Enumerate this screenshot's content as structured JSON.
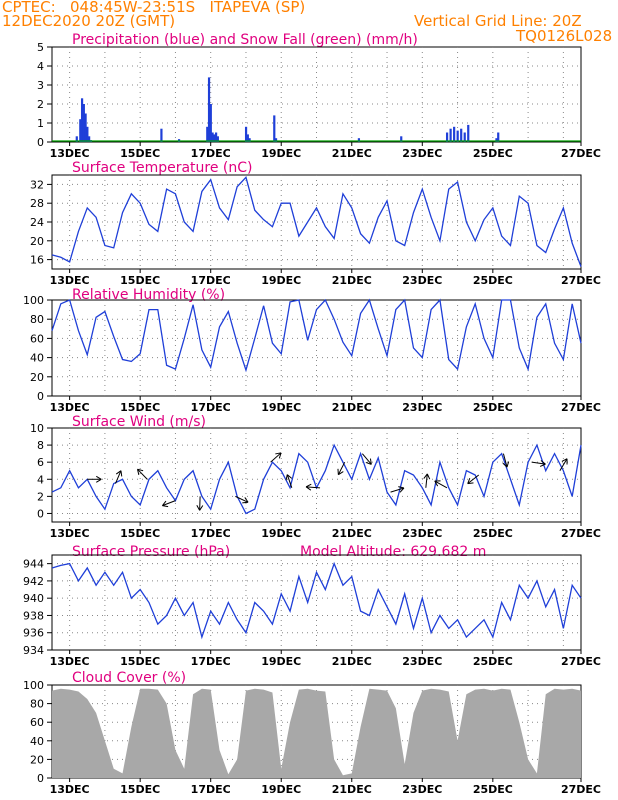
{
  "header": {
    "line1": "CPTEC:   048:45W-23:51S   ITAPEVA (SP)",
    "line2": "12DEC2020 20Z (GMT)",
    "right1": "Vertical Grid Line: 20Z",
    "right2": "TQ0126L028",
    "color": "#ff8000"
  },
  "colors": {
    "title": "#e0007f",
    "line": "#1f3fd8",
    "snow": "#00a000",
    "cloud": "#a8a8a8",
    "grid": "#888888"
  },
  "x_ticks": [
    "13DEC",
    "15DEC",
    "17DEC",
    "19DEC",
    "21DEC",
    "23DEC",
    "25DEC",
    "27DEC"
  ],
  "chart_data": [
    {
      "type": "bar",
      "title": "Precipitation (blue) and Snow Fall (green) (mm/h)",
      "ylim": [
        0,
        5
      ],
      "yticks": [
        "0",
        "1",
        "2",
        "3",
        "4",
        "5"
      ],
      "series": [
        {
          "name": "Precipitation",
          "points": [
            [
              0.7,
              0.3
            ],
            [
              0.8,
              1.2
            ],
            [
              0.85,
              2.3
            ],
            [
              0.9,
              2.0
            ],
            [
              0.95,
              1.5
            ],
            [
              1.0,
              0.8
            ],
            [
              1.05,
              0.3
            ],
            [
              1.1,
              0.1
            ],
            [
              3.1,
              0.7
            ],
            [
              3.6,
              0.15
            ],
            [
              4.4,
              0.8
            ],
            [
              4.45,
              3.4
            ],
            [
              4.5,
              2.0
            ],
            [
              4.55,
              0.5
            ],
            [
              4.6,
              0.4
            ],
            [
              4.65,
              0.5
            ],
            [
              4.7,
              0.3
            ],
            [
              5.5,
              0.8
            ],
            [
              5.55,
              0.4
            ],
            [
              5.6,
              0.2
            ],
            [
              6.3,
              1.4
            ],
            [
              6.35,
              0.2
            ],
            [
              8.7,
              0.2
            ],
            [
              9.9,
              0.3
            ],
            [
              11.2,
              0.5
            ],
            [
              11.3,
              0.7
            ],
            [
              11.4,
              0.8
            ],
            [
              11.5,
              0.6
            ],
            [
              11.6,
              0.7
            ],
            [
              11.7,
              0.5
            ],
            [
              11.8,
              0.9
            ],
            [
              12.6,
              0.2
            ],
            [
              12.65,
              0.5
            ]
          ]
        },
        {
          "name": "Snow Fall",
          "points": []
        }
      ]
    },
    {
      "type": "line",
      "title": "Surface Temperature (nC)",
      "ylim": [
        14,
        34
      ],
      "yticks": [
        "16",
        "20",
        "24",
        "28",
        "32"
      ],
      "x": [
        0,
        0.25,
        0.5,
        0.75,
        1,
        1.25,
        1.5,
        1.75,
        2,
        2.25,
        2.5,
        2.75,
        3,
        3.25,
        3.5,
        3.75,
        4,
        4.25,
        4.5,
        4.75,
        5,
        5.25,
        5.5,
        5.75,
        6,
        6.25,
        6.5,
        6.75,
        7,
        7.25,
        7.5,
        7.75,
        8,
        8.25,
        8.5,
        8.75,
        9,
        9.25,
        9.5,
        9.75,
        10,
        10.25,
        10.5,
        10.75,
        11,
        11.25,
        11.5,
        11.75,
        12,
        12.25,
        12.5,
        12.75,
        13,
        13.25,
        13.5,
        13.75,
        14,
        14.25,
        14.5,
        14.75,
        15
      ],
      "values": [
        17,
        16.5,
        15.5,
        22,
        27,
        25,
        19,
        18.5,
        26,
        30,
        28,
        23.5,
        22,
        31,
        30,
        24,
        22,
        30.5,
        33,
        27,
        24.5,
        31.5,
        33.5,
        26.5,
        24.5,
        23,
        28,
        28,
        21,
        24,
        27,
        23,
        20.5,
        30,
        27,
        21.5,
        19.5,
        25,
        28.5,
        20,
        19,
        26,
        31,
        25,
        20,
        31,
        32.5,
        24,
        20,
        24.5,
        27,
        21,
        19,
        29.5,
        28,
        19,
        17.5,
        22.5,
        27,
        19.5,
        14.5
      ]
    },
    {
      "type": "line",
      "title": "Relative Humidity (%)",
      "ylim": [
        0,
        100
      ],
      "yticks": [
        "0",
        "20",
        "40",
        "60",
        "80",
        "100"
      ],
      "x": [
        0,
        0.25,
        0.5,
        0.75,
        1,
        1.25,
        1.5,
        1.75,
        2,
        2.25,
        2.5,
        2.75,
        3,
        3.25,
        3.5,
        3.75,
        4,
        4.25,
        4.5,
        4.75,
        5,
        5.25,
        5.5,
        5.75,
        6,
        6.25,
        6.5,
        6.75,
        7,
        7.25,
        7.5,
        7.75,
        8,
        8.25,
        8.5,
        8.75,
        9,
        9.25,
        9.5,
        9.75,
        10,
        10.25,
        10.5,
        10.75,
        11,
        11.25,
        11.5,
        11.75,
        12,
        12.25,
        12.5,
        12.75,
        13,
        13.25,
        13.5,
        13.75,
        14,
        14.25,
        14.5,
        14.75,
        15
      ],
      "values": [
        68,
        96,
        100,
        68,
        43,
        82,
        88,
        62,
        38,
        36,
        44,
        90,
        90,
        32,
        28,
        60,
        95,
        48,
        30,
        72,
        88,
        55,
        27,
        60,
        94,
        55,
        44,
        98,
        100,
        58,
        90,
        100,
        80,
        56,
        42,
        86,
        100,
        70,
        42,
        90,
        100,
        50,
        40,
        90,
        100,
        38,
        28,
        72,
        96,
        60,
        40,
        100,
        100,
        50,
        28,
        82,
        96,
        55,
        38,
        96,
        55
      ]
    },
    {
      "type": "line",
      "title": "Surface Wind (m/s)",
      "ylim": [
        -1,
        10
      ],
      "yticks": [
        "0",
        "2",
        "4",
        "6",
        "8",
        "10"
      ],
      "x": [
        0,
        0.25,
        0.5,
        0.75,
        1,
        1.25,
        1.5,
        1.75,
        2,
        2.25,
        2.5,
        2.75,
        3,
        3.25,
        3.5,
        3.75,
        4,
        4.25,
        4.5,
        4.75,
        5,
        5.25,
        5.5,
        5.75,
        6,
        6.25,
        6.5,
        6.75,
        7,
        7.25,
        7.5,
        7.75,
        8,
        8.25,
        8.5,
        8.75,
        9,
        9.25,
        9.5,
        9.75,
        10,
        10.25,
        10.5,
        10.75,
        11,
        11.25,
        11.5,
        11.75,
        12,
        12.25,
        12.5,
        12.75,
        13,
        13.25,
        13.5,
        13.75,
        14,
        14.25,
        14.5,
        14.75,
        15
      ],
      "values": [
        2.5,
        3,
        5,
        3,
        4,
        2,
        0.5,
        3.5,
        4,
        2,
        1,
        4,
        5,
        3,
        1.5,
        4,
        5,
        2,
        0.5,
        4,
        6,
        2,
        0,
        0.5,
        4,
        6,
        5,
        3,
        7,
        6,
        3,
        5,
        8,
        6,
        4,
        7,
        4,
        6.5,
        2.5,
        1,
        5,
        4.5,
        3,
        1,
        6,
        3,
        1,
        5,
        4.5,
        2,
        6,
        7,
        4,
        1,
        6,
        8,
        5,
        7,
        5,
        2,
        8
      ],
      "arrows_at": [
        1,
        1.8,
        2.7,
        3.5,
        4.2,
        5.2,
        6.2,
        6.8,
        7.6,
        8.3,
        8.8,
        9.6,
        10.6,
        11.2,
        12.1,
        12.8,
        13.6,
        14.4
      ]
    },
    {
      "type": "line",
      "title": "Surface Pressure (hPa)",
      "subtitle": "Model Altitude: 629.682  m",
      "ylim": [
        934,
        945
      ],
      "yticks": [
        "934",
        "936",
        "938",
        "940",
        "942",
        "944"
      ],
      "x": [
        0,
        0.25,
        0.5,
        0.75,
        1,
        1.25,
        1.5,
        1.75,
        2,
        2.25,
        2.5,
        2.75,
        3,
        3.25,
        3.5,
        3.75,
        4,
        4.25,
        4.5,
        4.75,
        5,
        5.25,
        5.5,
        5.75,
        6,
        6.25,
        6.5,
        6.75,
        7,
        7.25,
        7.5,
        7.75,
        8,
        8.25,
        8.5,
        8.75,
        9,
        9.25,
        9.5,
        9.75,
        10,
        10.25,
        10.5,
        10.75,
        11,
        11.25,
        11.5,
        11.75,
        12,
        12.25,
        12.5,
        12.75,
        13,
        13.25,
        13.5,
        13.75,
        14,
        14.25,
        14.5,
        14.75,
        15
      ],
      "values": [
        943.5,
        943.8,
        944,
        942,
        943.5,
        941.5,
        943,
        941.5,
        943,
        940,
        941,
        939.5,
        937,
        938,
        940,
        938,
        939.5,
        935.5,
        938.5,
        937,
        939.5,
        937.5,
        936,
        939.5,
        938.5,
        937,
        940.5,
        938.5,
        942.5,
        939.5,
        943,
        941,
        944,
        941.5,
        942.5,
        938.5,
        938,
        941,
        939,
        937,
        940.5,
        936.5,
        940,
        936,
        938,
        936.5,
        937.5,
        935.5,
        936.5,
        937.5,
        935.5,
        939.5,
        937.5,
        941.5,
        940,
        942,
        939,
        941,
        936.5,
        941.5,
        940
      ]
    },
    {
      "type": "area",
      "title": "Cloud Cover (%)",
      "ylim": [
        0,
        100
      ],
      "yticks": [
        "0",
        "20",
        "40",
        "60",
        "80",
        "100"
      ],
      "x": [
        0,
        0.25,
        0.5,
        0.75,
        1,
        1.25,
        1.5,
        1.75,
        2,
        2.25,
        2.5,
        2.75,
        3,
        3.25,
        3.5,
        3.75,
        4,
        4.25,
        4.5,
        4.75,
        5,
        5.25,
        5.5,
        5.75,
        6,
        6.25,
        6.5,
        6.75,
        7,
        7.25,
        7.5,
        7.75,
        8,
        8.25,
        8.5,
        8.75,
        9,
        9.25,
        9.5,
        9.75,
        10,
        10.25,
        10.5,
        10.75,
        11,
        11.25,
        11.5,
        11.75,
        12,
        12.25,
        12.5,
        12.75,
        13,
        13.25,
        13.5,
        13.75,
        14,
        14.25,
        14.5,
        14.75,
        15
      ],
      "values": [
        94,
        96,
        95,
        93,
        85,
        70,
        40,
        10,
        5,
        55,
        96,
        96,
        95,
        80,
        30,
        10,
        90,
        96,
        95,
        30,
        4,
        20,
        94,
        96,
        95,
        92,
        10,
        60,
        95,
        96,
        94,
        93,
        20,
        3,
        5,
        55,
        96,
        95,
        94,
        75,
        15,
        70,
        94,
        96,
        95,
        93,
        40,
        90,
        95,
        96,
        94,
        96,
        95,
        60,
        20,
        5,
        90,
        96,
        95,
        96,
        94
      ]
    }
  ]
}
